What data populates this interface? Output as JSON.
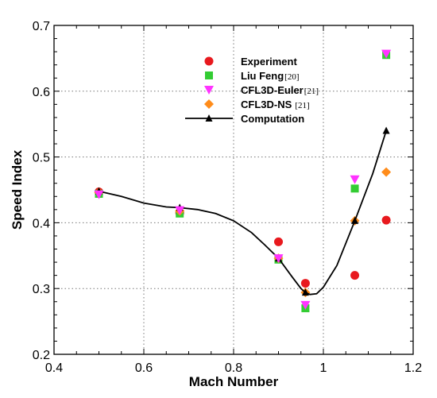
{
  "chart_data": {
    "type": "scatter",
    "xlabel": "Mach Number",
    "ylabel": "Speed Index",
    "xlim": [
      0.4,
      1.2
    ],
    "ylim": [
      0.2,
      0.7
    ],
    "xticks": [
      "0.4",
      "0.6",
      "0.8",
      "1",
      "1.2"
    ],
    "yticks": [
      "0.2",
      "0.3",
      "0.4",
      "0.5",
      "0.6",
      "0.7"
    ],
    "grid": "dotted at interior ticks",
    "legend_position": "upper-center",
    "series": [
      {
        "name": "Experiment",
        "ref": "",
        "marker": "circle",
        "color": "#e8191e",
        "points": [
          [
            0.5,
            0.447
          ],
          [
            0.68,
            0.415
          ],
          [
            0.9,
            0.371
          ],
          [
            0.96,
            0.308
          ],
          [
            1.07,
            0.32
          ],
          [
            1.14,
            0.404
          ]
        ]
      },
      {
        "name": "Liu Feng",
        "ref": "[20]",
        "marker": "square",
        "color": "#33cc33",
        "points": [
          [
            0.5,
            0.444
          ],
          [
            0.68,
            0.414
          ],
          [
            0.9,
            0.344
          ],
          [
            0.96,
            0.27
          ],
          [
            1.07,
            0.452
          ],
          [
            1.14,
            0.655
          ]
        ]
      },
      {
        "name": "CFL3D-Euler",
        "ref": "[21]",
        "marker": "triangle-down",
        "color": "#ff33ff",
        "points": [
          [
            0.5,
            0.443
          ],
          [
            0.68,
            0.419
          ],
          [
            0.9,
            0.346
          ],
          [
            0.96,
            0.275
          ],
          [
            1.07,
            0.466
          ],
          [
            1.14,
            0.657
          ]
        ]
      },
      {
        "name": "CFL3D-NS",
        "ref": "[21]",
        "marker": "diamond",
        "color": "#ff8c1a",
        "points": [
          [
            0.5,
            0.446
          ],
          [
            0.68,
            0.418
          ],
          [
            0.9,
            0.346
          ],
          [
            0.96,
            0.294
          ],
          [
            1.07,
            0.403
          ],
          [
            1.14,
            0.477
          ]
        ]
      },
      {
        "name": "Computation",
        "ref": "",
        "marker": "triangle-up",
        "color": "#000000",
        "line": true,
        "points": [
          [
            0.5,
            0.448
          ],
          [
            0.68,
            0.423
          ],
          [
            0.9,
            0.346
          ],
          [
            0.96,
            0.294
          ],
          [
            1.07,
            0.403
          ],
          [
            1.14,
            0.54
          ]
        ],
        "curve": [
          [
            0.5,
            0.448
          ],
          [
            0.55,
            0.44
          ],
          [
            0.6,
            0.43
          ],
          [
            0.65,
            0.424
          ],
          [
            0.68,
            0.423
          ],
          [
            0.72,
            0.42
          ],
          [
            0.76,
            0.414
          ],
          [
            0.8,
            0.403
          ],
          [
            0.84,
            0.385
          ],
          [
            0.87,
            0.366
          ],
          [
            0.9,
            0.346
          ],
          [
            0.93,
            0.318
          ],
          [
            0.95,
            0.3
          ],
          [
            0.96,
            0.294
          ],
          [
            0.97,
            0.291
          ],
          [
            0.985,
            0.292
          ],
          [
            1.0,
            0.302
          ],
          [
            1.03,
            0.335
          ],
          [
            1.07,
            0.403
          ],
          [
            1.11,
            0.475
          ],
          [
            1.14,
            0.54
          ]
        ]
      }
    ]
  }
}
